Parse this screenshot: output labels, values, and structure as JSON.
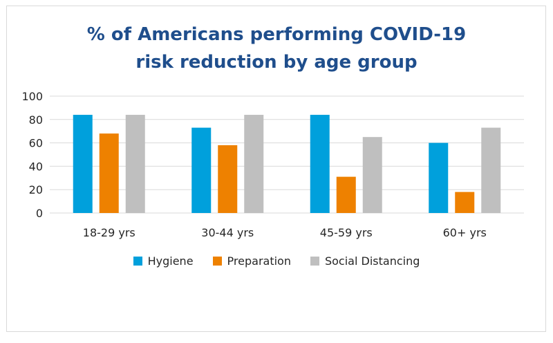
{
  "chart_data": {
    "type": "bar",
    "title": "% of Americans performing COVID-19\nrisk reduction  by age group",
    "categories": [
      "18-29 yrs",
      "30-44 yrs",
      "45-59 yrs",
      "60+ yrs"
    ],
    "series": [
      {
        "name": "Hygiene",
        "color": "#00a0dc",
        "values": [
          84,
          73,
          84,
          60
        ]
      },
      {
        "name": "Preparation",
        "color": "#ee8100",
        "values": [
          68,
          58,
          31,
          18
        ]
      },
      {
        "name": "Social Distancing",
        "color": "#bfbfbf",
        "values": [
          84,
          84,
          65,
          73
        ]
      }
    ],
    "ylim": [
      0,
      100
    ],
    "yticks": [
      0,
      20,
      40,
      60,
      80,
      100
    ],
    "grid": true,
    "legend": "bottom"
  }
}
